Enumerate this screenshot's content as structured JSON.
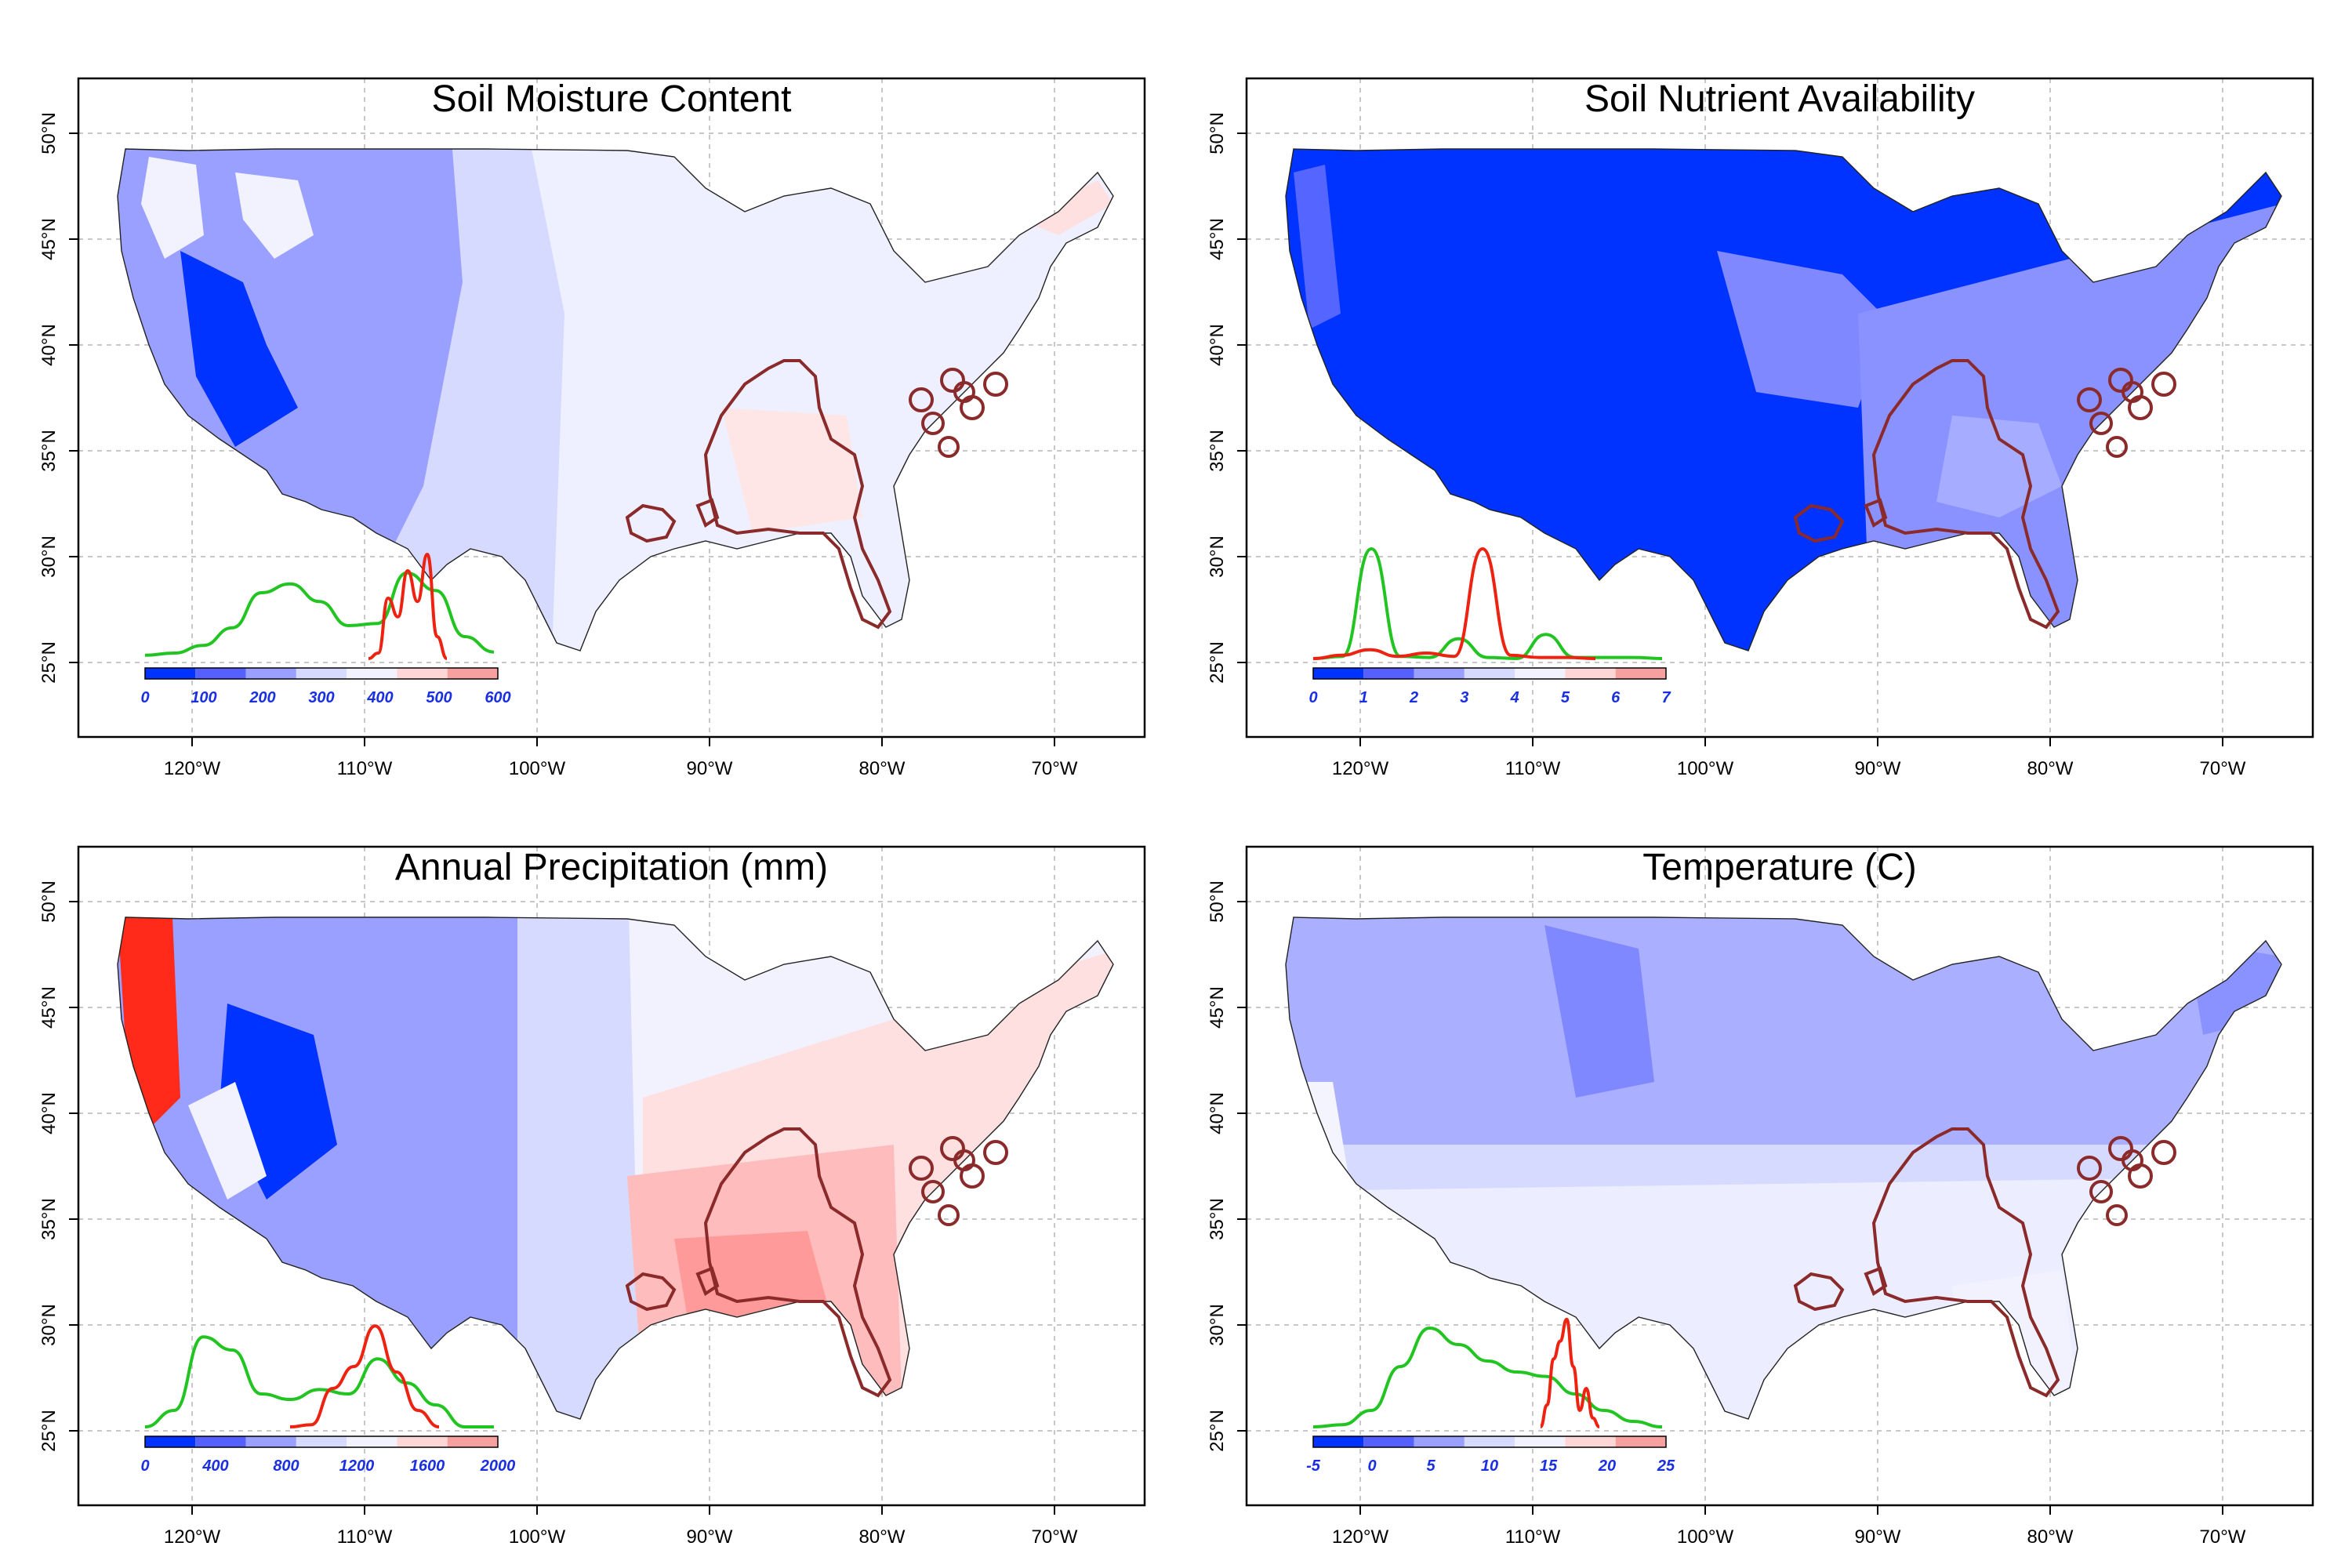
{
  "colors": {
    "deep_blue": "#0033ff",
    "mid_blue": "#7f88ff",
    "light_blue": "#d6daff",
    "pale": "#f2f2ff",
    "pale_red": "#ffd6d6",
    "red": "#ff2a1a",
    "green_curve": "#22c422",
    "red_curve": "#ee2211",
    "range_outline": "#8b2a2a"
  },
  "axes": {
    "lon_ticks": [
      "120°W",
      "110°W",
      "100°W",
      "90°W",
      "80°W",
      "70°W"
    ],
    "lat_ticks": [
      "50°N",
      "45°N",
      "40°N",
      "35°N",
      "30°N",
      "25°N"
    ]
  },
  "panels": [
    {
      "title": "Soil Moisture Content",
      "fill": "moisture",
      "colorbar_ticks": [
        "0",
        "100",
        "200",
        "300",
        "400",
        "500",
        "600"
      ],
      "colorbar_colors": [
        "#0033ff",
        "#5560ff",
        "#9aa0ff",
        "#d6daff",
        "#f2f2ff",
        "#ffd6d6",
        "#f6a0a0"
      ],
      "green_curve_y": [
        0.03,
        0.05,
        0.12,
        0.28,
        0.6,
        0.68,
        0.52,
        0.3,
        0.32,
        0.78,
        0.62,
        0.2,
        0.06
      ],
      "red_curve_y": [
        0.0,
        0.05,
        0.55,
        0.38,
        0.8,
        0.52,
        0.95,
        0.2,
        0.0
      ]
    },
    {
      "title": "Soil Nutrient Availability",
      "fill": "nutrient",
      "colorbar_ticks": [
        "0",
        "1",
        "2",
        "3",
        "4",
        "5",
        "6",
        "7"
      ],
      "colorbar_colors": [
        "#0033ff",
        "#5560ff",
        "#9aa0ff",
        "#d6daff",
        "#f2f2ff",
        "#ffd6d6",
        "#f6a0a0"
      ],
      "green_curve_y": [
        0.0,
        0.02,
        1.0,
        0.02,
        0.01,
        0.18,
        0.01,
        0.0,
        0.22,
        0.01,
        0.01,
        0.01,
        0.0
      ],
      "red_curve_y": [
        0.0,
        0.03,
        0.08,
        0.02,
        0.05,
        0.02,
        1.0,
        0.03,
        0.01,
        0.01,
        0.0
      ]
    },
    {
      "title": "Annual Precipitation (mm)",
      "fill": "precip",
      "colorbar_ticks": [
        "0",
        "400",
        "800",
        "1200",
        "1600",
        "2000"
      ],
      "colorbar_colors": [
        "#0033ff",
        "#5560ff",
        "#9aa0ff",
        "#d6daff",
        "#f2f2ff",
        "#ffd6d6",
        "#f6a0a0"
      ],
      "green_curve_y": [
        0.0,
        0.15,
        0.82,
        0.7,
        0.3,
        0.25,
        0.34,
        0.3,
        0.62,
        0.4,
        0.2,
        0.0,
        0.0
      ],
      "red_curve_y": [
        0.0,
        0.02,
        0.35,
        0.55,
        0.92,
        0.5,
        0.15,
        0.0
      ]
    },
    {
      "title": "Temperature (C)",
      "fill": "temp",
      "colorbar_ticks": [
        "-5",
        "0",
        "5",
        "10",
        "15",
        "20",
        "25"
      ],
      "colorbar_colors": [
        "#0033ff",
        "#5560ff",
        "#9aa0ff",
        "#d6daff",
        "#f2f2ff",
        "#ffd6d6",
        "#f6a0a0"
      ],
      "green_curve_y": [
        0.0,
        0.02,
        0.15,
        0.55,
        0.9,
        0.75,
        0.6,
        0.5,
        0.46,
        0.3,
        0.15,
        0.05,
        0.0
      ],
      "red_curve_y": [
        0.0,
        0.2,
        0.62,
        0.78,
        0.98,
        0.55,
        0.15,
        0.35,
        0.08,
        0.0
      ]
    }
  ]
}
